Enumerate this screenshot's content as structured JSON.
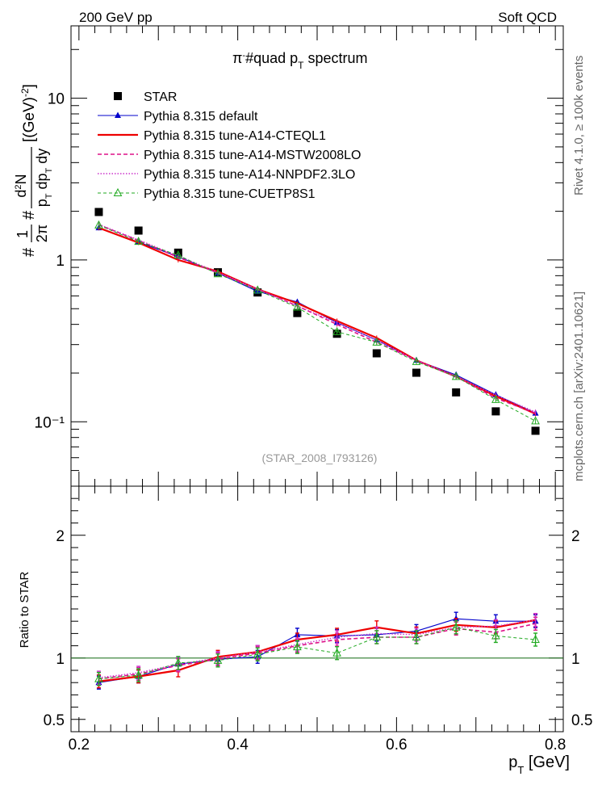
{
  "header": {
    "left": "200 GeV pp",
    "right": "Soft QCD",
    "side_top": "Rivet 4.1.0, ≥ 100k events",
    "side_bottom": "mcplots.cern.ch [arXiv:2401.10621]"
  },
  "chart_data": [
    {
      "type": "line",
      "panel": "main",
      "title": "π⁻#quad p_T spectrum",
      "watermark": "(STAR_2008_I793126)",
      "xlabel": "p_T [GeV]",
      "ylabel": "#1/2π # d²N / p_T dp_T dy [(GeV)⁻²]",
      "yscale": "log",
      "xlim": [
        0.19,
        0.81
      ],
      "ylim": [
        0.04,
        28
      ],
      "ytick_labels": [
        "10⁻¹",
        "1",
        "10"
      ],
      "x": [
        0.225,
        0.275,
        0.325,
        0.375,
        0.425,
        0.475,
        0.525,
        0.575,
        0.625,
        0.675,
        0.725,
        0.775
      ],
      "series": [
        {
          "name": "STAR",
          "style": "data",
          "color": "#000000",
          "marker": "square",
          "values": [
            1.98,
            1.52,
            1.11,
            0.84,
            0.63,
            0.47,
            0.35,
            0.265,
            0.201,
            0.152,
            0.116,
            0.088
          ]
        },
        {
          "name": "Pythia 8.315 default",
          "style": "solid-thin",
          "color": "#0000cc",
          "marker": "triangle",
          "values": [
            1.58,
            1.29,
            1.05,
            0.83,
            0.64,
            0.55,
            0.41,
            0.32,
            0.24,
            0.195,
            0.147,
            0.113
          ]
        },
        {
          "name": "Pythia 8.315 tune-A14-CTEQL1",
          "style": "solid-thick",
          "color": "#ee0000",
          "marker": "none",
          "values": [
            1.58,
            1.28,
            1.0,
            0.85,
            0.66,
            0.54,
            0.42,
            0.33,
            0.24,
            0.19,
            0.144,
            0.112
          ]
        },
        {
          "name": "Pythia 8.315 tune-A14-MSTW2008LO",
          "style": "dashed",
          "color": "#dd1188",
          "marker": "none",
          "values": [
            1.65,
            1.32,
            1.04,
            0.83,
            0.66,
            0.52,
            0.4,
            0.31,
            0.24,
            0.19,
            0.14,
            0.113
          ]
        },
        {
          "name": "Pythia 8.315 tune-A14-NNPDF2.3LO",
          "style": "dotted",
          "color": "#cc33cc",
          "marker": "none",
          "values": [
            1.66,
            1.33,
            1.06,
            0.84,
            0.66,
            0.52,
            0.41,
            0.32,
            0.24,
            0.19,
            0.146,
            0.115
          ]
        },
        {
          "name": "Pythia 8.315 tune-CUETP8S1",
          "style": "dashed-thin",
          "color": "#22aa22",
          "marker": "triangle-open",
          "values": [
            1.64,
            1.3,
            1.07,
            0.82,
            0.65,
            0.51,
            0.36,
            0.31,
            0.235,
            0.19,
            0.137,
            0.101
          ]
        }
      ]
    },
    {
      "type": "line",
      "panel": "ratio",
      "ylabel": "Ratio to STAR",
      "xlabel": "p_T [GeV]",
      "xlim": [
        0.19,
        0.81
      ],
      "ylim": [
        0.4,
        2.4
      ],
      "yticks": [
        0.5,
        1,
        2
      ],
      "ytick_labels": [
        "0.5",
        "1",
        "2"
      ],
      "xticks": [
        0.2,
        0.4,
        0.6,
        0.8
      ],
      "xtick_labels": [
        "0.2",
        "0.4",
        "0.6",
        "0.8"
      ],
      "reference": 1,
      "x": [
        0.225,
        0.275,
        0.325,
        0.375,
        0.425,
        0.475,
        0.525,
        0.575,
        0.625,
        0.675,
        0.725,
        0.775
      ],
      "series": [
        {
          "name": "Pythia 8.315 default",
          "color": "#0000cc",
          "style": "solid-thin",
          "marker": "triangle",
          "values": [
            0.8,
            0.85,
            0.95,
            0.99,
            1.01,
            1.19,
            1.18,
            1.19,
            1.22,
            1.32,
            1.3,
            1.3
          ]
        },
        {
          "name": "Pythia 8.315 tune-A14-CTEQL1",
          "color": "#ee0000",
          "style": "solid-thick",
          "marker": "none",
          "values": [
            0.81,
            0.85,
            0.9,
            1.01,
            1.05,
            1.15,
            1.19,
            1.25,
            1.2,
            1.27,
            1.25,
            1.31
          ]
        },
        {
          "name": "Pythia 8.315 tune-A14-MSTW2008LO",
          "color": "#dd1188",
          "style": "dashed",
          "marker": "none",
          "values": [
            0.83,
            0.87,
            0.94,
            0.99,
            1.04,
            1.1,
            1.15,
            1.17,
            1.17,
            1.24,
            1.21,
            1.28
          ]
        },
        {
          "name": "Pythia 8.315 tune-A14-NNPDF2.3LO",
          "color": "#cc33cc",
          "style": "dotted",
          "marker": "none",
          "values": [
            0.84,
            0.88,
            0.95,
            1.0,
            1.05,
            1.11,
            1.17,
            1.2,
            1.19,
            1.25,
            1.26,
            1.31
          ]
        },
        {
          "name": "Pythia 8.315 tune-CUETP8S1",
          "color": "#22aa22",
          "style": "dashed-thin",
          "marker": "triangle-open",
          "values": [
            0.83,
            0.86,
            0.96,
            0.98,
            1.03,
            1.09,
            1.04,
            1.17,
            1.17,
            1.25,
            1.18,
            1.15
          ]
        }
      ]
    }
  ]
}
